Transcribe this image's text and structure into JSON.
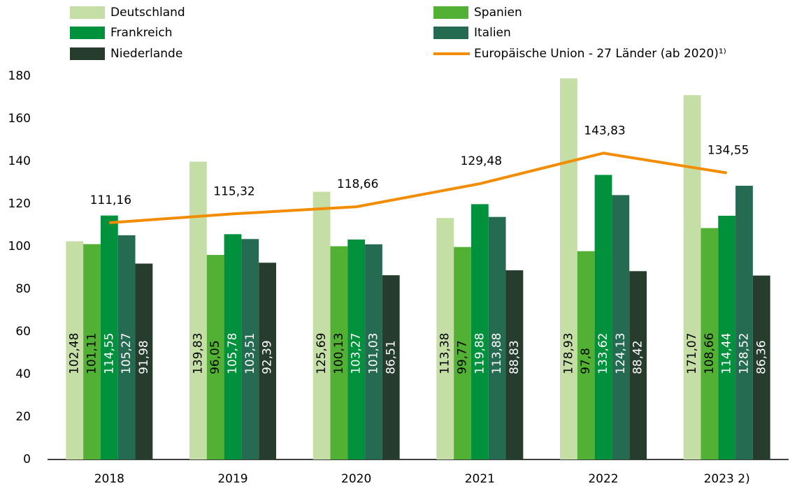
{
  "chart_data": {
    "type": "bar",
    "categories": [
      "2018",
      "2019",
      "2020",
      "2021",
      "2022",
      "2023 2)"
    ],
    "series": [
      {
        "name": "Deutschland",
        "color": "#c5dea6",
        "values": [
          102.48,
          139.83,
          125.69,
          113.38,
          178.93,
          171.07
        ],
        "value_labels": [
          "102,48",
          "139,83",
          "125,69",
          "113,38",
          "178,93",
          "171,07"
        ]
      },
      {
        "name": "Spanien",
        "color": "#52b135",
        "values": [
          101.11,
          96.05,
          100.13,
          99.77,
          97.8,
          108.66
        ],
        "value_labels": [
          "101,11",
          "96,05",
          "100,13",
          "99,77",
          "97,8",
          "108,66"
        ]
      },
      {
        "name": "Frankreich",
        "color": "#00913c",
        "values": [
          114.55,
          105.78,
          103.27,
          119.88,
          133.62,
          114.44
        ],
        "value_labels": [
          "114,55",
          "105,78",
          "103,27",
          "119,88",
          "133,62",
          "114,44"
        ]
      },
      {
        "name": "Italien",
        "color": "#256b52",
        "values": [
          105.27,
          103.51,
          101.03,
          113.88,
          124.13,
          128.52
        ],
        "value_labels": [
          "105,27",
          "103,51",
          "101,03",
          "113,88",
          "124,13",
          "128,52"
        ]
      },
      {
        "name": "Niederlande",
        "color": "#263d2e",
        "values": [
          91.98,
          92.39,
          86.51,
          88.83,
          88.42,
          86.36
        ],
        "value_labels": [
          "91,98",
          "92,39",
          "86,51",
          "88,83",
          "88,42",
          "86,36"
        ]
      },
      {
        "name": "Europäische Union - 27 Länder (ab 2020)¹⁾",
        "type": "line",
        "color": "#f28c00",
        "values": [
          111.16,
          115.32,
          118.66,
          129.48,
          143.83,
          134.55
        ],
        "value_labels": [
          "111,16",
          "115,32",
          "118,66",
          "129,48",
          "143,83",
          "134,55"
        ]
      }
    ],
    "ylim": [
      0,
      180
    ],
    "yticks": [
      0,
      20,
      40,
      60,
      80,
      100,
      120,
      140,
      160,
      180
    ],
    "grid": false
  }
}
